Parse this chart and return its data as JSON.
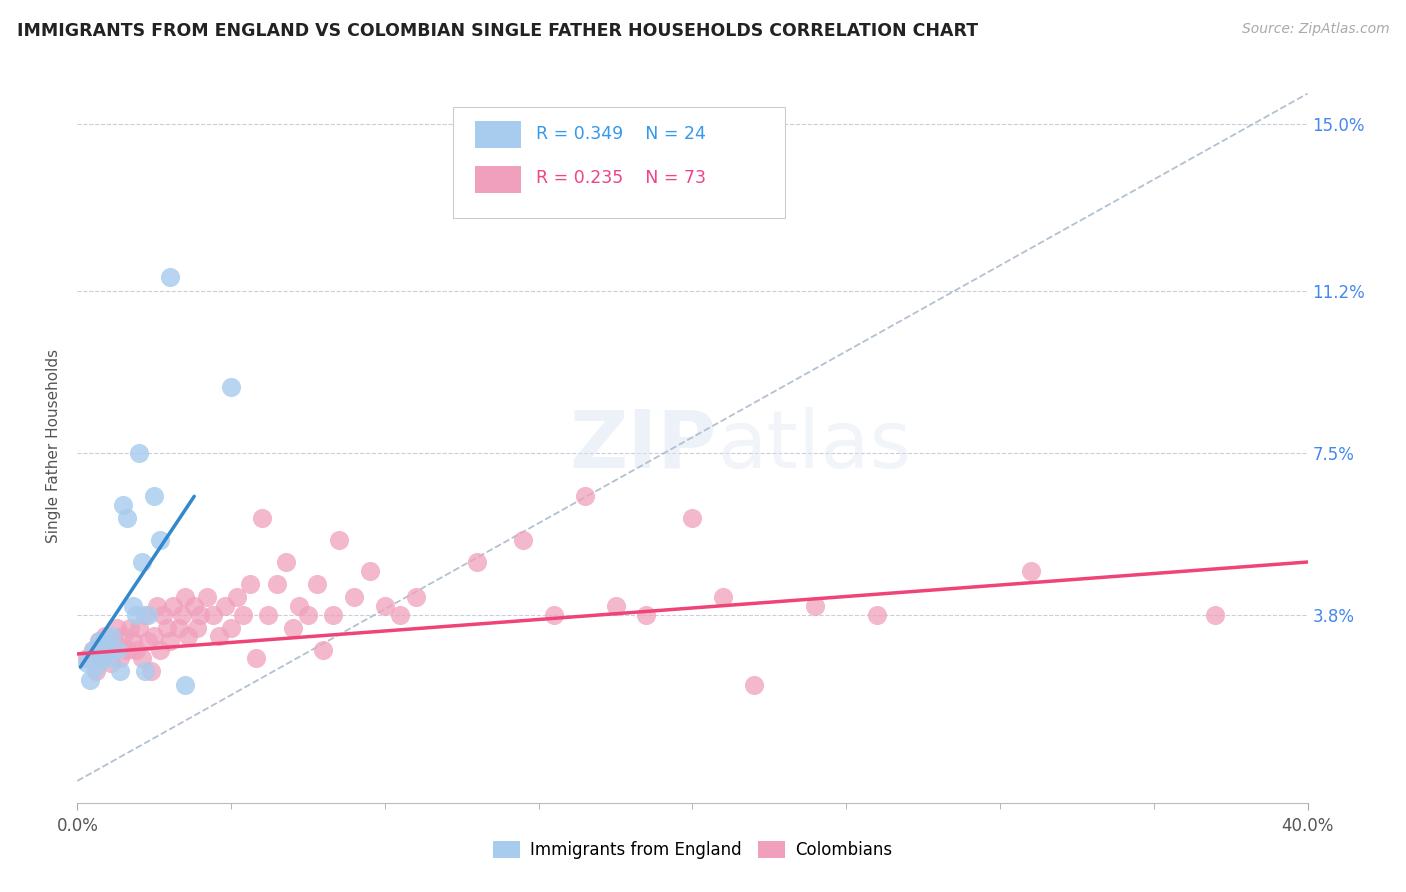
{
  "title": "IMMIGRANTS FROM ENGLAND VS COLOMBIAN SINGLE FATHER HOUSEHOLDS CORRELATION CHART",
  "source": "Source: ZipAtlas.com",
  "ylabel": "Single Father Households",
  "color_blue": "#A8CCEE",
  "color_pink": "#F0A0BC",
  "line_blue": "#3388CC",
  "line_pink": "#EE4477",
  "diag_color": "#AABBCC",
  "legend1_r": "0.349",
  "legend1_n": "24",
  "legend2_r": "0.235",
  "legend2_n": "73",
  "xlim": [
    0.0,
    0.4
  ],
  "ylim": [
    -0.005,
    0.158
  ],
  "yticks": [
    0.0,
    0.038,
    0.075,
    0.112,
    0.15
  ],
  "ytick_labels": [
    "",
    "3.8%",
    "7.5%",
    "11.2%",
    "15.0%"
  ],
  "xtick_minor_vals": [
    0.05,
    0.1,
    0.15,
    0.2,
    0.25,
    0.3,
    0.35
  ],
  "england_x": [
    0.003,
    0.004,
    0.005,
    0.006,
    0.007,
    0.008,
    0.009,
    0.01,
    0.011,
    0.013,
    0.014,
    0.015,
    0.016,
    0.018,
    0.019,
    0.02,
    0.021,
    0.022,
    0.023,
    0.025,
    0.027,
    0.03,
    0.035,
    0.05
  ],
  "england_y": [
    0.027,
    0.023,
    0.03,
    0.026,
    0.032,
    0.028,
    0.032,
    0.028,
    0.033,
    0.03,
    0.025,
    0.063,
    0.06,
    0.04,
    0.038,
    0.075,
    0.05,
    0.025,
    0.038,
    0.065,
    0.055,
    0.115,
    0.022,
    0.09
  ],
  "colombia_x": [
    0.003,
    0.005,
    0.006,
    0.007,
    0.008,
    0.009,
    0.01,
    0.011,
    0.012,
    0.013,
    0.014,
    0.015,
    0.016,
    0.017,
    0.018,
    0.019,
    0.02,
    0.021,
    0.022,
    0.023,
    0.024,
    0.025,
    0.026,
    0.027,
    0.028,
    0.029,
    0.03,
    0.031,
    0.033,
    0.034,
    0.035,
    0.036,
    0.038,
    0.039,
    0.04,
    0.042,
    0.044,
    0.046,
    0.048,
    0.05,
    0.052,
    0.054,
    0.056,
    0.058,
    0.06,
    0.062,
    0.065,
    0.068,
    0.07,
    0.072,
    0.075,
    0.078,
    0.08,
    0.083,
    0.085,
    0.09,
    0.095,
    0.1,
    0.105,
    0.11,
    0.13,
    0.145,
    0.155,
    0.165,
    0.175,
    0.185,
    0.2,
    0.21,
    0.22,
    0.24,
    0.26,
    0.31,
    0.37
  ],
  "colombia_y": [
    0.028,
    0.03,
    0.025,
    0.032,
    0.028,
    0.033,
    0.03,
    0.027,
    0.032,
    0.035,
    0.028,
    0.033,
    0.03,
    0.035,
    0.032,
    0.03,
    0.035,
    0.028,
    0.038,
    0.032,
    0.025,
    0.033,
    0.04,
    0.03,
    0.038,
    0.035,
    0.032,
    0.04,
    0.035,
    0.038,
    0.042,
    0.033,
    0.04,
    0.035,
    0.038,
    0.042,
    0.038,
    0.033,
    0.04,
    0.035,
    0.042,
    0.038,
    0.045,
    0.028,
    0.06,
    0.038,
    0.045,
    0.05,
    0.035,
    0.04,
    0.038,
    0.045,
    0.03,
    0.038,
    0.055,
    0.042,
    0.048,
    0.04,
    0.038,
    0.042,
    0.05,
    0.055,
    0.038,
    0.065,
    0.04,
    0.038,
    0.06,
    0.042,
    0.022,
    0.04,
    0.038,
    0.048,
    0.038
  ],
  "blue_line_x": [
    0.001,
    0.038
  ],
  "blue_line_y": [
    0.026,
    0.065
  ],
  "pink_line_x": [
    0.0,
    0.4
  ],
  "pink_line_y": [
    0.029,
    0.05
  ]
}
